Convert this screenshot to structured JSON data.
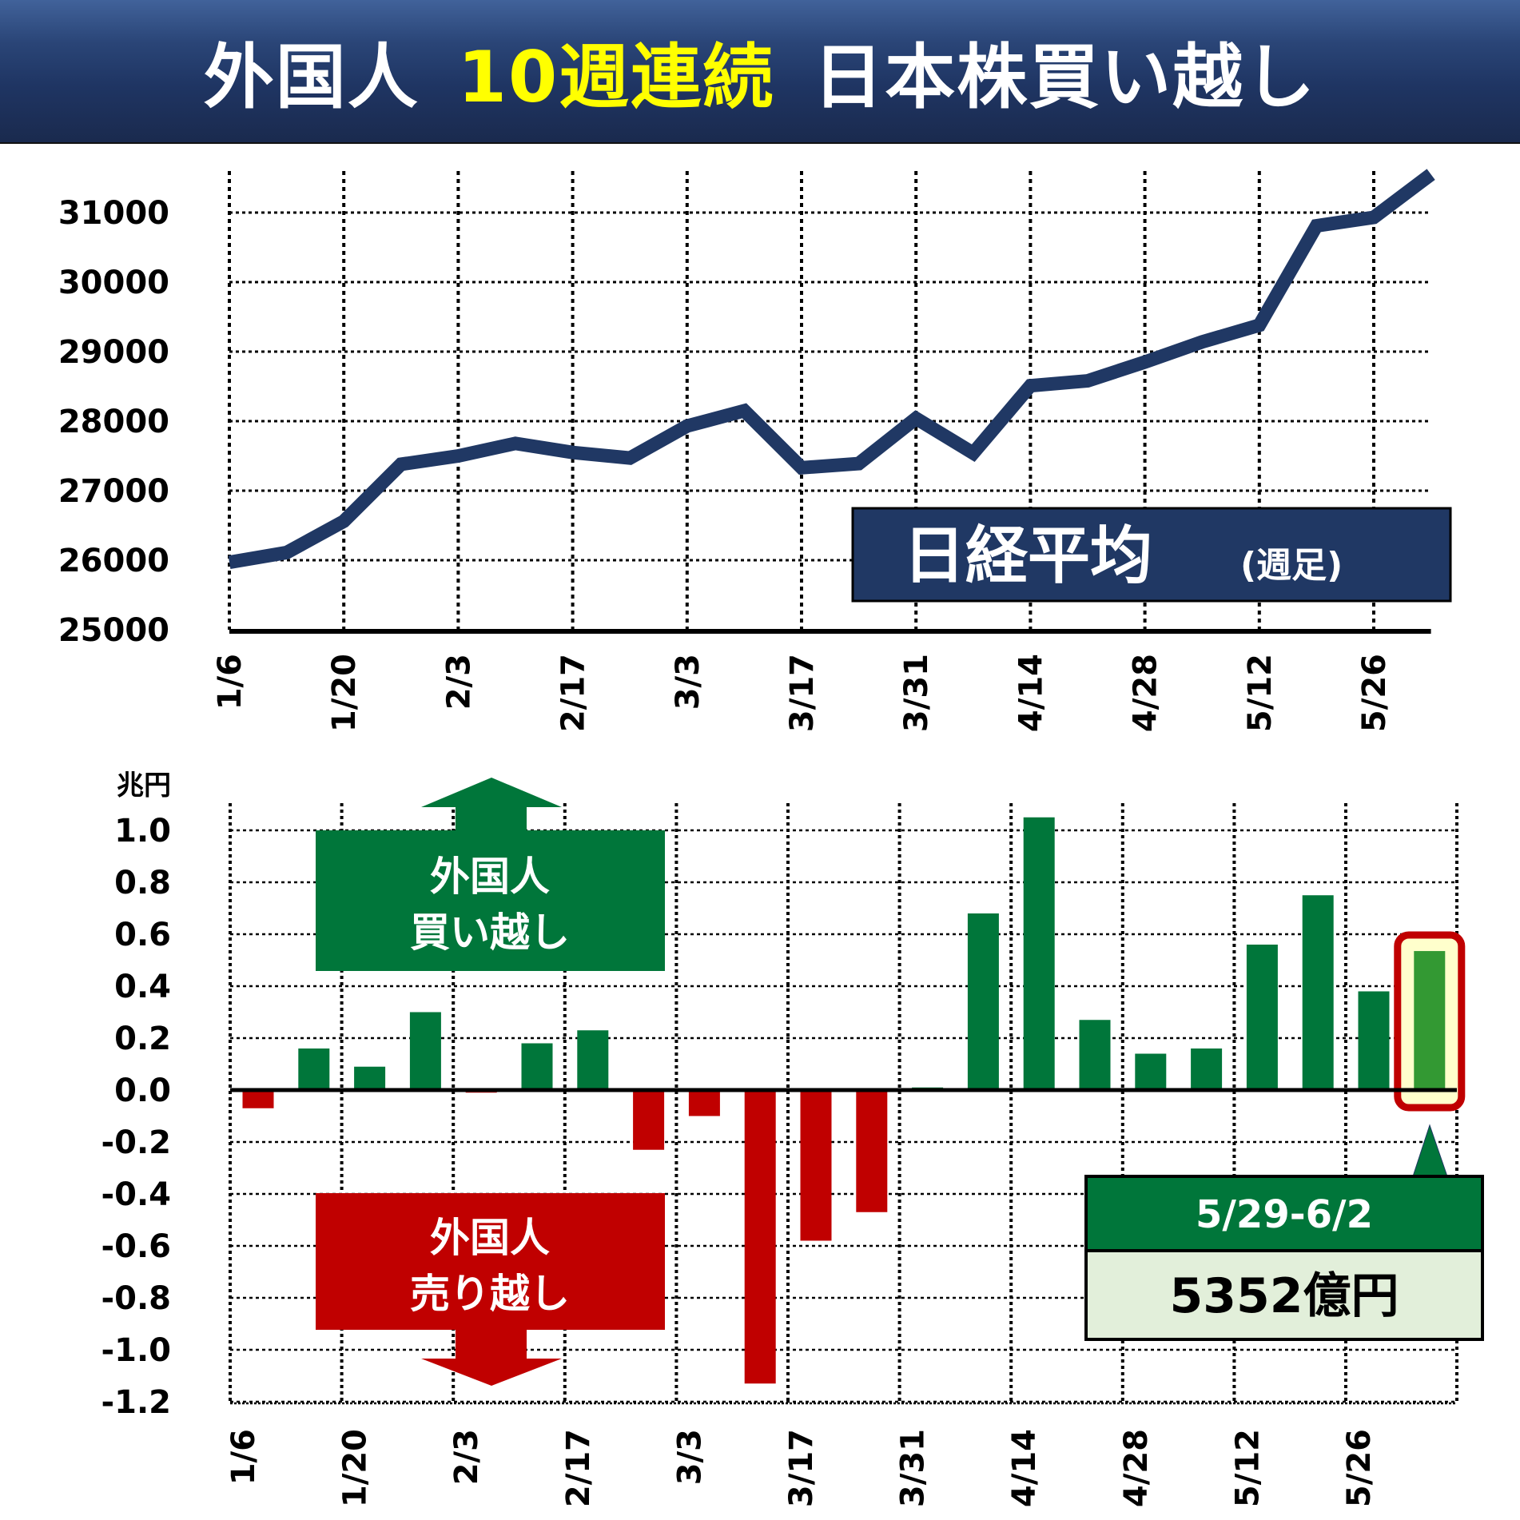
{
  "header": {
    "title_part1": "外国人",
    "title_part2": "10週連続",
    "title_part3": "日本株買い越し",
    "colors": {
      "bg_top": "#41629a",
      "bg_bottom": "#1a2a4e",
      "text": "#ffffff",
      "highlight": "#ffff00"
    }
  },
  "colors": {
    "nikkei_line": "#203864",
    "buy_bar": "#00763a",
    "sell_bar": "#c00000",
    "highlight_bar": "#339933",
    "highlight_bg": "#ffffcc",
    "highlight_border": "#c00000",
    "callout_header": "#00763a",
    "callout_body": "#e2efda"
  },
  "nikkei_label": {
    "main": "日経平均",
    "sub": "(週足)"
  },
  "buy_label": {
    "line1": "外国人",
    "line2": "買い越し"
  },
  "sell_label": {
    "line1": "外国人",
    "line2": "売り越し"
  },
  "callout": {
    "period": "5/29-6/2",
    "value": "5352億円"
  },
  "chart_data": [
    {
      "type": "line",
      "title": "日経平均 (週足)",
      "xlabel": "",
      "ylabel": "",
      "x_tick_labels": [
        "1/6",
        "1/20",
        "2/3",
        "2/17",
        "3/3",
        "3/17",
        "3/31",
        "4/14",
        "4/28",
        "5/12",
        "5/26"
      ],
      "yticks": [
        25000,
        26000,
        27000,
        28000,
        29000,
        30000,
        31000
      ],
      "ylim": [
        25000,
        31700
      ],
      "grid": true,
      "x": [
        "1/6",
        "1/13",
        "1/20",
        "1/27",
        "2/3",
        "2/10",
        "2/17",
        "2/24",
        "3/3",
        "3/10",
        "3/17",
        "3/24",
        "3/31",
        "4/7",
        "4/14",
        "4/21",
        "4/28",
        "5/5",
        "5/12",
        "5/19",
        "5/26",
        "6/2"
      ],
      "series": [
        {
          "name": "日経平均",
          "values": [
            25970,
            26110,
            26560,
            27380,
            27500,
            27680,
            27550,
            27470,
            27930,
            28150,
            27330,
            27390,
            28040,
            27540,
            28510,
            28580,
            28850,
            29140,
            29380,
            30810,
            30930,
            31550
          ]
        }
      ]
    },
    {
      "type": "bar",
      "title": "外国人 日本株売買 (週次)",
      "ylabel": "兆円",
      "xlabel": "",
      "x_tick_labels": [
        "1/6",
        "1/20",
        "2/3",
        "2/17",
        "3/3",
        "3/17",
        "3/31",
        "4/14",
        "4/28",
        "5/12",
        "5/26"
      ],
      "yticks": [
        1.0,
        0.8,
        0.6,
        0.4,
        0.2,
        0.0,
        -0.2,
        -0.4,
        -0.6,
        -0.8,
        -1.0,
        -1.2
      ],
      "ytick_labels": [
        "1.0",
        "0.8",
        "0.6",
        "0.4",
        "0.2",
        "0.0",
        "-0.2",
        "-0.4",
        "-0.6",
        "-0.8",
        "-1.0",
        "-1.2"
      ],
      "ylim": [
        -1.2,
        1.1
      ],
      "grid": true,
      "categories": [
        "1/6",
        "1/13",
        "1/20",
        "1/27",
        "2/3",
        "2/10",
        "2/17",
        "2/24",
        "3/3",
        "3/10",
        "3/17",
        "3/24",
        "3/31",
        "4/7",
        "4/14",
        "4/21",
        "4/28",
        "5/5",
        "5/12",
        "5/19",
        "5/26",
        "6/2"
      ],
      "values": [
        -0.07,
        0.16,
        0.09,
        0.3,
        -0.01,
        0.18,
        0.23,
        -0.23,
        -0.1,
        -1.13,
        -0.58,
        -0.47,
        0.01,
        0.68,
        1.05,
        0.27,
        0.14,
        0.16,
        0.56,
        0.75,
        0.38,
        0.5352
      ],
      "highlight_index": 21,
      "annotations": [
        "外国人 買い越し",
        "外国人 売り越し",
        "5/29-6/2 5352億円"
      ]
    }
  ]
}
